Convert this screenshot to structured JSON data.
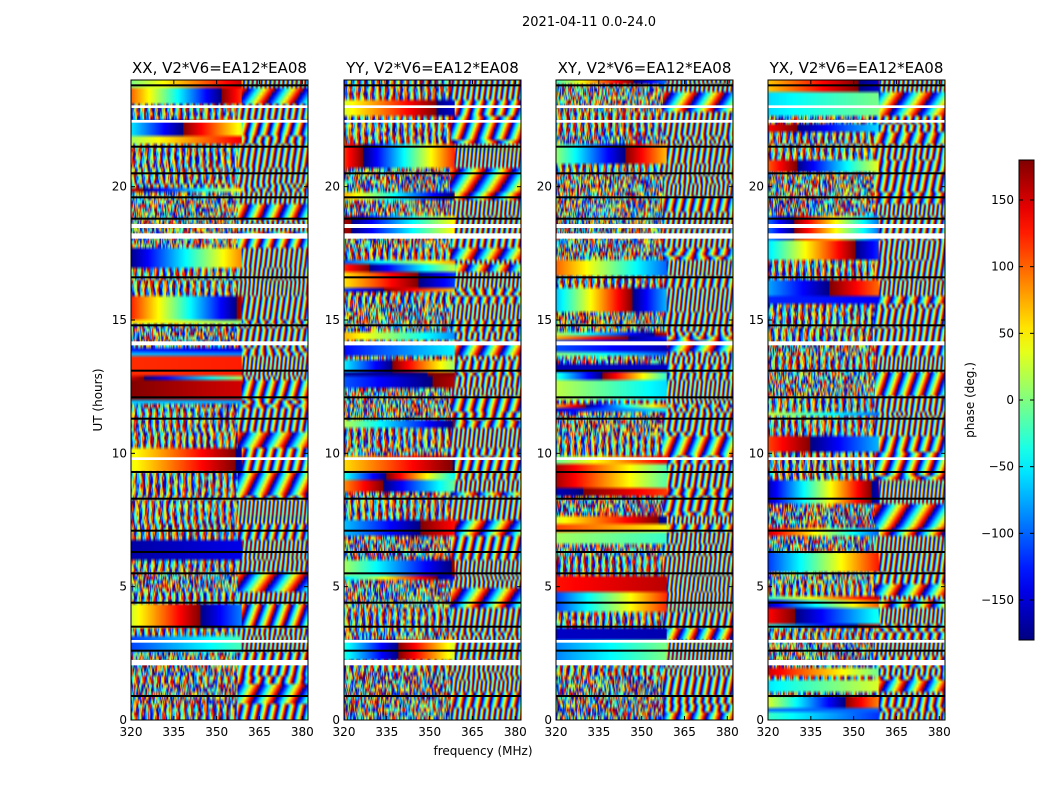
{
  "chart_data": {
    "type": "heatmap",
    "title": "2021-04-11 0.0-24.0",
    "xlabel": "frequency (MHz)",
    "ylabel": "UT (hours)",
    "xlim": [
      320,
      382
    ],
    "ylim": [
      0,
      24
    ],
    "x_ticks": [
      "320",
      "335",
      "350",
      "365",
      "380"
    ],
    "y_ticks": [
      "0",
      "5",
      "10",
      "15",
      "20"
    ],
    "panels": [
      {
        "title": "XX, V2*V6=EA12*EA08"
      },
      {
        "title": "YY, V2*V6=EA12*EA08"
      },
      {
        "title": "XY, V2*V6=EA12*EA08"
      },
      {
        "title": "YX, V2*V6=EA12*EA08"
      }
    ],
    "colorbar": {
      "label": "phase (deg.)",
      "range": [
        -180,
        180
      ],
      "ticks": [
        "150",
        "100",
        "50",
        "0",
        "−50",
        "−100",
        "−150"
      ],
      "colormap": "jet"
    },
    "value_meaning": "phase in degrees, wrapped to [-180, 180]",
    "flagged_gaps_ut": [
      [
        2.05,
        2.25
      ],
      [
        2.9,
        3.0
      ],
      [
        9.75,
        9.85
      ],
      [
        14.05,
        14.2
      ],
      [
        18.05,
        18.25
      ],
      [
        18.45,
        18.6
      ],
      [
        22.4,
        22.5
      ],
      [
        22.95,
        23.05
      ]
    ],
    "black_separator_ut": [
      0.9,
      2.6,
      3.5,
      4.4,
      5.5,
      6.3,
      7.1,
      8.3,
      9.3,
      11.3,
      12.1,
      13.1,
      14.8,
      16.6,
      18.8,
      19.6,
      20.5,
      21.5,
      23.8
    ]
  }
}
